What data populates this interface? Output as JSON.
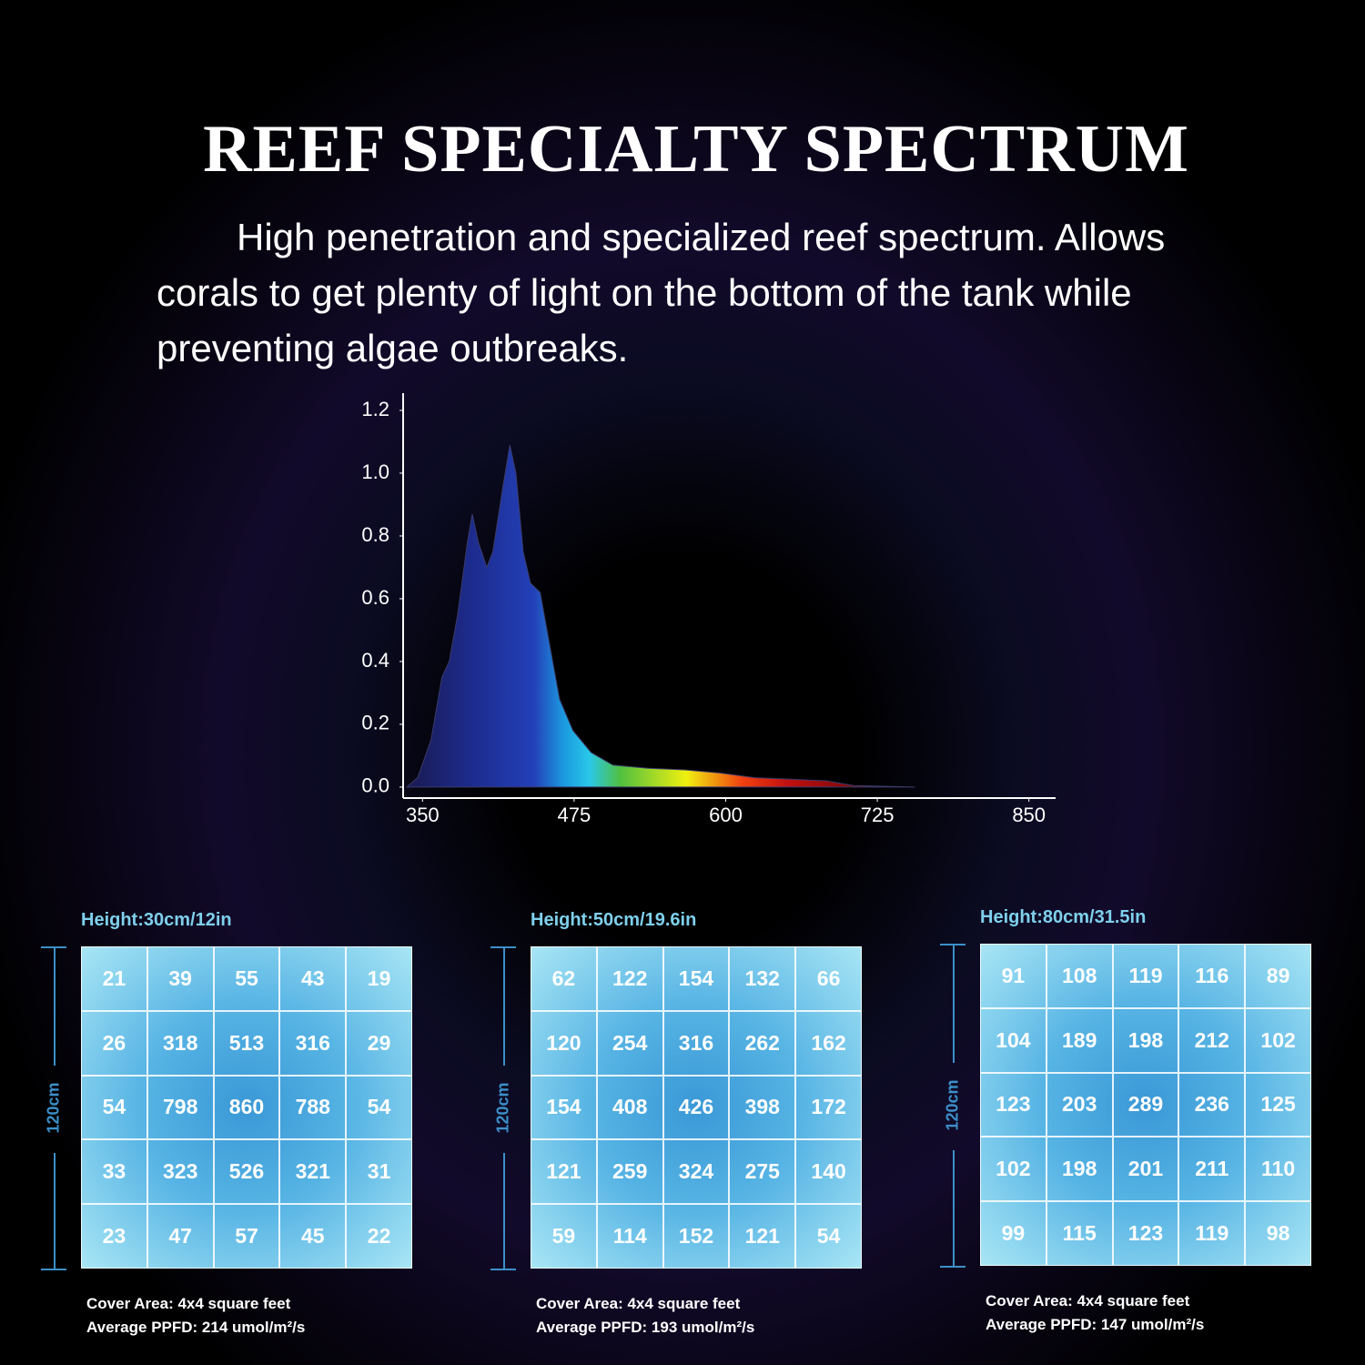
{
  "header": {
    "title": "REEF SPECIALTY SPECTRUM",
    "description": "High penetration and specialized reef spectrum. Allows corals to get plenty of light on the bottom of the tank while preventing algae outbreaks."
  },
  "chart_data": {
    "type": "area",
    "x": [
      337,
      346,
      357,
      366,
      372,
      379,
      387,
      391,
      396,
      403,
      408,
      416,
      422,
      427,
      433,
      439,
      447,
      455,
      463,
      474,
      489,
      507,
      536,
      566,
      595,
      624,
      653,
      683,
      705,
      756
    ],
    "values": [
      0,
      0.03,
      0.15,
      0.35,
      0.4,
      0.55,
      0.78,
      0.87,
      0.78,
      0.7,
      0.75,
      0.95,
      1.09,
      1.0,
      0.75,
      0.65,
      0.62,
      0.45,
      0.28,
      0.18,
      0.11,
      0.07,
      0.06,
      0.055,
      0.045,
      0.03,
      0.025,
      0.02,
      0.005,
      0
    ],
    "xlim": [
      334,
      872
    ],
    "ylim": [
      -0.035,
      1.255
    ],
    "xticks": [
      350,
      475,
      600,
      725,
      850
    ],
    "yticks": [
      {
        "value": 0,
        "label": "0.0"
      },
      0.2,
      0.4,
      0.6,
      0.8,
      {
        "value": 1,
        "label": "1.0"
      },
      1.2
    ]
  },
  "grids": [
    {
      "height": "Height:30cm/12in",
      "side_label": "120cm",
      "rows": [
        [
          "21",
          "39",
          "55",
          "43",
          "19"
        ],
        [
          "26",
          "318",
          "513",
          "316",
          "29"
        ],
        [
          "54",
          "798",
          "860",
          "788",
          "54"
        ],
        [
          "33",
          "323",
          "526",
          "321",
          "31"
        ],
        [
          "23",
          "47",
          "57",
          "45",
          "22"
        ]
      ],
      "cover_area": "Cover Area: 4x4 square feet",
      "average": "Average PPFD: 214 umol/m²/s"
    },
    {
      "height": "Height:50cm/19.6in",
      "side_label": "120cm",
      "rows": [
        [
          "62",
          "122",
          "154",
          "132",
          "66"
        ],
        [
          "120",
          "254",
          "316",
          "262",
          "162"
        ],
        [
          "154",
          "408",
          "426",
          "398",
          "172"
        ],
        [
          "121",
          "259",
          "324",
          "275",
          "140"
        ],
        [
          "59",
          "114",
          "152",
          "121",
          "54"
        ]
      ],
      "cover_area": "Cover Area: 4x4 square feet",
      "average": "Average PPFD: 193 umol/m²/s"
    },
    {
      "height": "Height:80cm/31.5in",
      "side_label": "120cm",
      "rows": [
        [
          "91",
          "108",
          "119",
          "116",
          "89"
        ],
        [
          "104",
          "189",
          "198",
          "212",
          "102"
        ],
        [
          "123",
          "203",
          "289",
          "236",
          "125"
        ],
        [
          "102",
          "198",
          "201",
          "211",
          "110"
        ],
        [
          "99",
          "115",
          "123",
          "119",
          "98"
        ]
      ],
      "cover_area": "Cover Area: 4x4 square feet",
      "average": "Average PPFD: 147 umol/m²/s"
    }
  ]
}
